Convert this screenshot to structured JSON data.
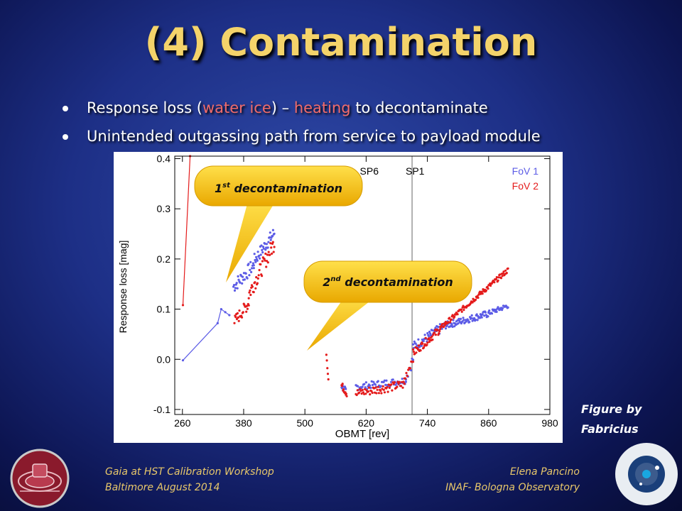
{
  "slide": {
    "title": "(4) Contamination",
    "bullets": [
      {
        "parts": [
          "Response  loss (",
          "water ice",
          ") – ",
          "heating",
          " to decontaminate"
        ]
      },
      {
        "parts": [
          "Unintended outgassing path from service to payload module"
        ]
      }
    ],
    "credit": [
      "Figure by",
      "Fabricius"
    ],
    "footer_left": [
      "Gaia at HST Calibration Workshop",
      "Baltimore August 2014"
    ],
    "footer_right": [
      "Elena Pancino",
      "INAF- Bologna Observatory"
    ],
    "callouts": {
      "first": [
        "1",
        "st",
        " decontamination"
      ],
      "second": [
        "2",
        "nd",
        " decontamination"
      ]
    },
    "colors": {
      "title": "#f4d36a",
      "highlight": "#f06b6b",
      "footer": "#e9c86a",
      "callout": "#f6c200"
    }
  },
  "chart_data": {
    "type": "scatter",
    "xlabel": "OBMT [rev]",
    "ylabel": "Response loss [mag]",
    "xlim": [
      245,
      980
    ],
    "ylim": [
      -0.11,
      0.405
    ],
    "xticks": [
      260,
      380,
      500,
      620,
      740,
      860,
      980
    ],
    "yticks": [
      -0.1,
      0.0,
      0.1,
      0.2,
      0.3,
      0.4
    ],
    "ytick_labels": [
      "-0.1",
      "0.0",
      "0.1",
      "0.2",
      "0.3",
      "0.4"
    ],
    "vlines": [
      {
        "x": 710,
        "labels": [
          "SP6",
          "SP1"
        ]
      }
    ],
    "legend": {
      "position": "top-right",
      "entries": [
        "FoV 1",
        "FoV 2"
      ]
    },
    "series": [
      {
        "name": "FoV 1",
        "color": "#5c5ce6",
        "line_points": [
          [
            261,
            -0.002
          ],
          [
            329,
            0.072
          ],
          [
            336,
            0.1
          ],
          [
            344,
            0.094
          ],
          [
            352,
            0.088
          ]
        ],
        "segments": [
          {
            "x": [
              360,
              400
            ],
            "y": [
              0.145,
              0.188
            ],
            "n": 32,
            "spread": 0.014
          },
          {
            "x": [
              400,
              440
            ],
            "y": [
              0.196,
              0.252
            ],
            "n": 36,
            "spread": 0.013
          },
          {
            "x": [
              572,
              580
            ],
            "y": [
              -0.052,
              -0.065
            ],
            "n": 10,
            "spread": 0.008
          },
          {
            "x": [
              600,
              698
            ],
            "y": [
              -0.055,
              -0.042
            ],
            "n": 55,
            "spread": 0.007
          },
          {
            "x": [
              698,
              712
            ],
            "y": [
              -0.035,
              0.0
            ],
            "n": 8,
            "spread": 0.012
          },
          {
            "x": [
              712,
              770
            ],
            "y": [
              0.025,
              0.064
            ],
            "n": 46,
            "spread": 0.01
          },
          {
            "x": [
              770,
              860
            ],
            "y": [
              0.066,
              0.091
            ],
            "n": 75,
            "spread": 0.007
          },
          {
            "x": [
              860,
              898
            ],
            "y": [
              0.092,
              0.107
            ],
            "n": 30,
            "spread": 0.005
          }
        ]
      },
      {
        "name": "FoV 2",
        "color": "#e41b1b",
        "line_points": [
          [
            261,
            0.108
          ],
          [
            275,
            0.405
          ]
        ],
        "segments": [
          {
            "x": [
              362,
              390
            ],
            "y": [
              0.075,
              0.112
            ],
            "n": 24,
            "spread": 0.012
          },
          {
            "x": [
              390,
              440
            ],
            "y": [
              0.13,
              0.232
            ],
            "n": 42,
            "spread": 0.016
          },
          {
            "x": [
              542,
              546
            ],
            "y": [
              0.012,
              -0.04
            ],
            "n": 5,
            "spread": 0.004
          },
          {
            "x": [
              572,
              582
            ],
            "y": [
              -0.052,
              -0.068
            ],
            "n": 12,
            "spread": 0.007
          },
          {
            "x": [
              600,
              695
            ],
            "y": [
              -0.068,
              -0.05
            ],
            "n": 60,
            "spread": 0.009
          },
          {
            "x": [
              695,
              712
            ],
            "y": [
              -0.04,
              0.005
            ],
            "n": 10,
            "spread": 0.01
          },
          {
            "x": [
              712,
              765
            ],
            "y": [
              0.012,
              0.06
            ],
            "n": 44,
            "spread": 0.008
          },
          {
            "x": [
              765,
              898
            ],
            "y": [
              0.062,
              0.178
            ],
            "n": 110,
            "spread": 0.005
          }
        ]
      }
    ]
  }
}
